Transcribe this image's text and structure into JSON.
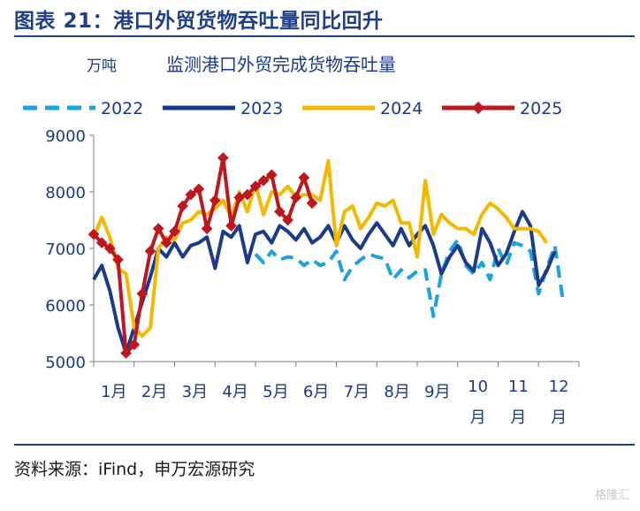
{
  "figure": {
    "title": "图表 21：港口外贸货物吞吐量同比回升",
    "source": "资料来源：iFind，申万宏源研究",
    "watermark": "格隆汇"
  },
  "chart_data": {
    "type": "line",
    "title": "监测港口外贸完成货物吞吐量",
    "unit_label": "万吨",
    "ylim": [
      5000,
      9000
    ],
    "yticks": [
      5000,
      6000,
      7000,
      8000,
      9000
    ],
    "x_ticks": [
      "1月",
      "2月",
      "3月",
      "4月",
      "5月",
      "6月",
      "7月",
      "8月",
      "9月",
      "10月",
      "11月",
      "12月"
    ],
    "x_range": [
      1,
      13
    ],
    "grid": false,
    "legend_position": "top",
    "series": [
      {
        "name": "2022",
        "color": "#1aa3e0",
        "style": "dashed",
        "marker": false,
        "points": [
          [
            5.0,
            6900
          ],
          [
            5.2,
            6750
          ],
          [
            5.4,
            6950
          ],
          [
            5.6,
            6800
          ],
          [
            5.8,
            6850
          ],
          [
            6.0,
            6830
          ],
          [
            6.2,
            6700
          ],
          [
            6.4,
            6800
          ],
          [
            6.6,
            6700
          ],
          [
            6.8,
            6750
          ],
          [
            7.0,
            6950
          ],
          [
            7.2,
            6450
          ],
          [
            7.4,
            6680
          ],
          [
            7.6,
            6800
          ],
          [
            7.8,
            6900
          ],
          [
            8.0,
            6850
          ],
          [
            8.2,
            6820
          ],
          [
            8.4,
            6450
          ],
          [
            8.6,
            6620
          ],
          [
            8.8,
            6480
          ],
          [
            9.0,
            6600
          ],
          [
            9.2,
            6620
          ],
          [
            9.4,
            5800
          ],
          [
            9.6,
            6550
          ],
          [
            9.8,
            6950
          ],
          [
            10.0,
            7150
          ],
          [
            10.2,
            6700
          ],
          [
            10.4,
            6550
          ],
          [
            10.6,
            6750
          ],
          [
            10.8,
            6450
          ],
          [
            11.0,
            7000
          ],
          [
            11.2,
            6700
          ],
          [
            11.4,
            7100
          ],
          [
            11.6,
            7050
          ],
          [
            11.8,
            6950
          ],
          [
            12.0,
            6200
          ],
          [
            12.2,
            6650
          ],
          [
            12.4,
            7050
          ],
          [
            12.6,
            6100
          ]
        ]
      },
      {
        "name": "2023",
        "color": "#1a3a8c",
        "style": "solid",
        "marker": false,
        "points": [
          [
            1.0,
            6450
          ],
          [
            1.2,
            6700
          ],
          [
            1.4,
            6250
          ],
          [
            1.6,
            5600
          ],
          [
            1.8,
            5150
          ],
          [
            2.0,
            5600
          ],
          [
            2.2,
            6050
          ],
          [
            2.4,
            6500
          ],
          [
            2.6,
            7000
          ],
          [
            2.8,
            6850
          ],
          [
            3.0,
            7100
          ],
          [
            3.2,
            6850
          ],
          [
            3.4,
            7050
          ],
          [
            3.6,
            7100
          ],
          [
            3.8,
            7200
          ],
          [
            4.0,
            6650
          ],
          [
            4.2,
            7300
          ],
          [
            4.4,
            7200
          ],
          [
            4.6,
            7400
          ],
          [
            4.8,
            6750
          ],
          [
            5.0,
            7250
          ],
          [
            5.2,
            7300
          ],
          [
            5.4,
            7100
          ],
          [
            5.6,
            7400
          ],
          [
            5.8,
            7300
          ],
          [
            6.0,
            7150
          ],
          [
            6.2,
            7350
          ],
          [
            6.4,
            7100
          ],
          [
            6.6,
            7200
          ],
          [
            6.8,
            7400
          ],
          [
            7.0,
            7100
          ],
          [
            7.2,
            7400
          ],
          [
            7.4,
            7150
          ],
          [
            7.6,
            7000
          ],
          [
            7.8,
            7250
          ],
          [
            8.0,
            7450
          ],
          [
            8.2,
            7250
          ],
          [
            8.4,
            7050
          ],
          [
            8.6,
            7350
          ],
          [
            8.8,
            7050
          ],
          [
            9.0,
            7250
          ],
          [
            9.2,
            7400
          ],
          [
            9.4,
            7050
          ],
          [
            9.6,
            6550
          ],
          [
            9.8,
            6850
          ],
          [
            10.0,
            7050
          ],
          [
            10.2,
            6750
          ],
          [
            10.4,
            6600
          ],
          [
            10.6,
            7350
          ],
          [
            10.8,
            7100
          ],
          [
            11.0,
            6700
          ],
          [
            11.2,
            6900
          ],
          [
            11.4,
            7300
          ],
          [
            11.6,
            7650
          ],
          [
            11.8,
            7400
          ],
          [
            12.0,
            6350
          ],
          [
            12.2,
            6600
          ],
          [
            12.4,
            6950
          ]
        ]
      },
      {
        "name": "2024",
        "color": "#f5b800",
        "style": "solid",
        "marker": false,
        "points": [
          [
            1.0,
            7200
          ],
          [
            1.2,
            7550
          ],
          [
            1.4,
            7200
          ],
          [
            1.6,
            6650
          ],
          [
            1.8,
            6550
          ],
          [
            2.0,
            5600
          ],
          [
            2.2,
            5450
          ],
          [
            2.4,
            5600
          ],
          [
            2.6,
            7000
          ],
          [
            2.8,
            7200
          ],
          [
            3.0,
            7150
          ],
          [
            3.2,
            7450
          ],
          [
            3.4,
            7500
          ],
          [
            3.6,
            7650
          ],
          [
            3.8,
            7600
          ],
          [
            4.0,
            7700
          ],
          [
            4.2,
            7850
          ],
          [
            4.4,
            7550
          ],
          [
            4.6,
            8000
          ],
          [
            4.8,
            7650
          ],
          [
            5.0,
            8150
          ],
          [
            5.2,
            7600
          ],
          [
            5.4,
            8000
          ],
          [
            5.6,
            7950
          ],
          [
            5.8,
            8100
          ],
          [
            6.0,
            7900
          ],
          [
            6.2,
            7950
          ],
          [
            6.4,
            7950
          ],
          [
            6.6,
            7850
          ],
          [
            6.8,
            8550
          ],
          [
            7.0,
            7050
          ],
          [
            7.2,
            7650
          ],
          [
            7.4,
            7750
          ],
          [
            7.6,
            7350
          ],
          [
            7.8,
            7550
          ],
          [
            8.0,
            7800
          ],
          [
            8.2,
            7750
          ],
          [
            8.4,
            7850
          ],
          [
            8.6,
            7450
          ],
          [
            8.8,
            7450
          ],
          [
            9.0,
            6850
          ],
          [
            9.2,
            8200
          ],
          [
            9.4,
            7250
          ],
          [
            9.6,
            7600
          ],
          [
            9.8,
            7450
          ],
          [
            10.0,
            7350
          ],
          [
            10.2,
            7350
          ],
          [
            10.4,
            7250
          ],
          [
            10.6,
            7600
          ],
          [
            10.8,
            7800
          ],
          [
            11.0,
            7700
          ],
          [
            11.2,
            7550
          ],
          [
            11.4,
            7350
          ],
          [
            11.6,
            7350
          ],
          [
            11.8,
            7350
          ],
          [
            12.0,
            7300
          ],
          [
            12.2,
            7100
          ]
        ]
      },
      {
        "name": "2025",
        "color": "#c0161e",
        "style": "solid",
        "marker": true,
        "points": [
          [
            1.0,
            7250
          ],
          [
            1.2,
            7100
          ],
          [
            1.4,
            7000
          ],
          [
            1.6,
            6800
          ],
          [
            1.8,
            5150
          ],
          [
            2.0,
            5300
          ],
          [
            2.2,
            6200
          ],
          [
            2.4,
            6950
          ],
          [
            2.6,
            7350
          ],
          [
            2.8,
            7100
          ],
          [
            3.0,
            7300
          ],
          [
            3.2,
            7750
          ],
          [
            3.4,
            7950
          ],
          [
            3.6,
            8050
          ],
          [
            3.8,
            7350
          ],
          [
            4.0,
            7850
          ],
          [
            4.2,
            8600
          ],
          [
            4.4,
            7400
          ],
          [
            4.6,
            7900
          ],
          [
            4.8,
            7950
          ],
          [
            5.0,
            8100
          ],
          [
            5.2,
            8200
          ],
          [
            5.4,
            8300
          ],
          [
            5.6,
            7650
          ],
          [
            5.8,
            7500
          ],
          [
            6.0,
            7900
          ],
          [
            6.2,
            8250
          ],
          [
            6.4,
            7800
          ]
        ]
      }
    ]
  }
}
